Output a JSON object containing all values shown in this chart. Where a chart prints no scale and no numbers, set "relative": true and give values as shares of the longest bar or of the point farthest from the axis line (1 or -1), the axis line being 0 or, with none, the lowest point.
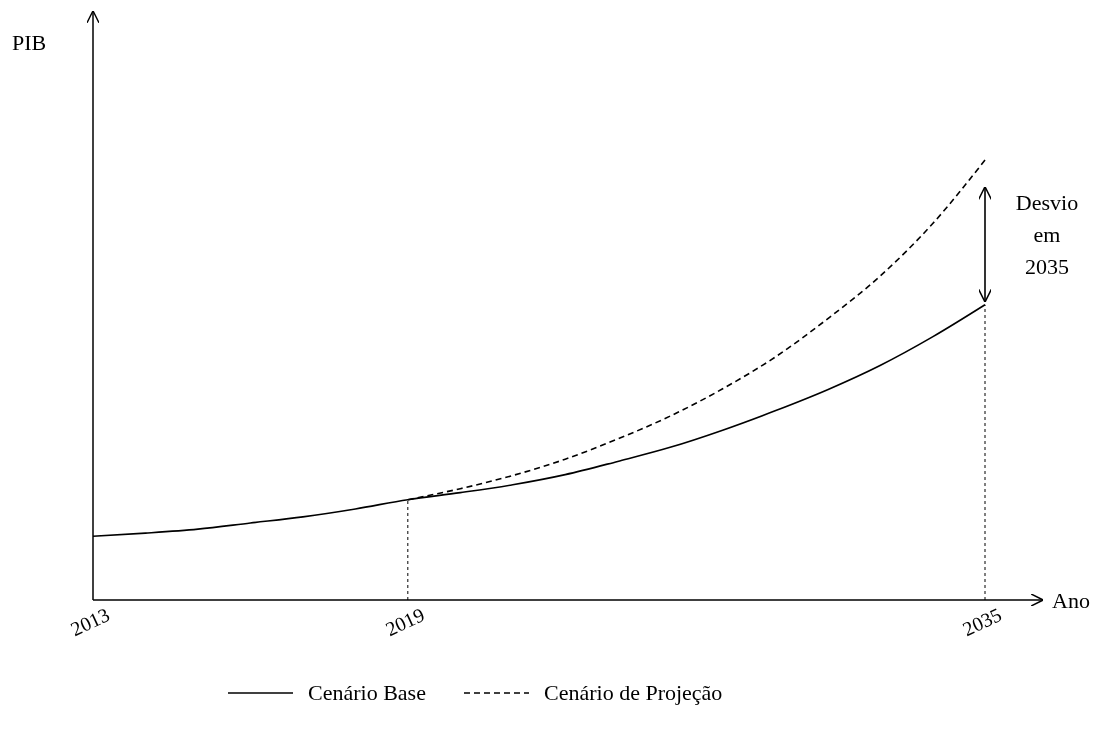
{
  "chart_data": {
    "type": "line",
    "relative": true,
    "xlabel": "Ano",
    "ylabel": "PIB",
    "categories": [
      "2013",
      null,
      null,
      null,
      null,
      null,
      "2019",
      null,
      null,
      null,
      null,
      null,
      null,
      null,
      null,
      null,
      null,
      "2035"
    ],
    "series": [
      {
        "name": "Cenário Base",
        "color": "#000000",
        "line_style": "solid",
        "values": [
          0.145,
          0.152,
          0.161,
          0.175,
          0.189,
          0.207,
          0.228,
          0.244,
          0.262,
          0.285,
          0.315,
          0.347,
          0.386,
          0.43,
          0.478,
          0.533,
          0.598,
          0.671
        ]
      },
      {
        "name": "Cenário de Projeção",
        "color": "#000000",
        "line_style": "dashed",
        "values": [
          null,
          null,
          null,
          null,
          null,
          null,
          0.228,
          0.253,
          0.283,
          0.32,
          0.366,
          0.418,
          0.48,
          0.552,
          0.639,
          0.736,
          0.855,
          1
        ]
      }
    ],
    "ref_lines": [
      {
        "axis": "x",
        "value": "2019",
        "line_style": "dotted"
      },
      {
        "axis": "x",
        "value": "2035",
        "line_style": "dotted"
      }
    ],
    "annotations": [
      "Desvio em 2035"
    ],
    "legend": "bottom",
    "marker": "none"
  }
}
